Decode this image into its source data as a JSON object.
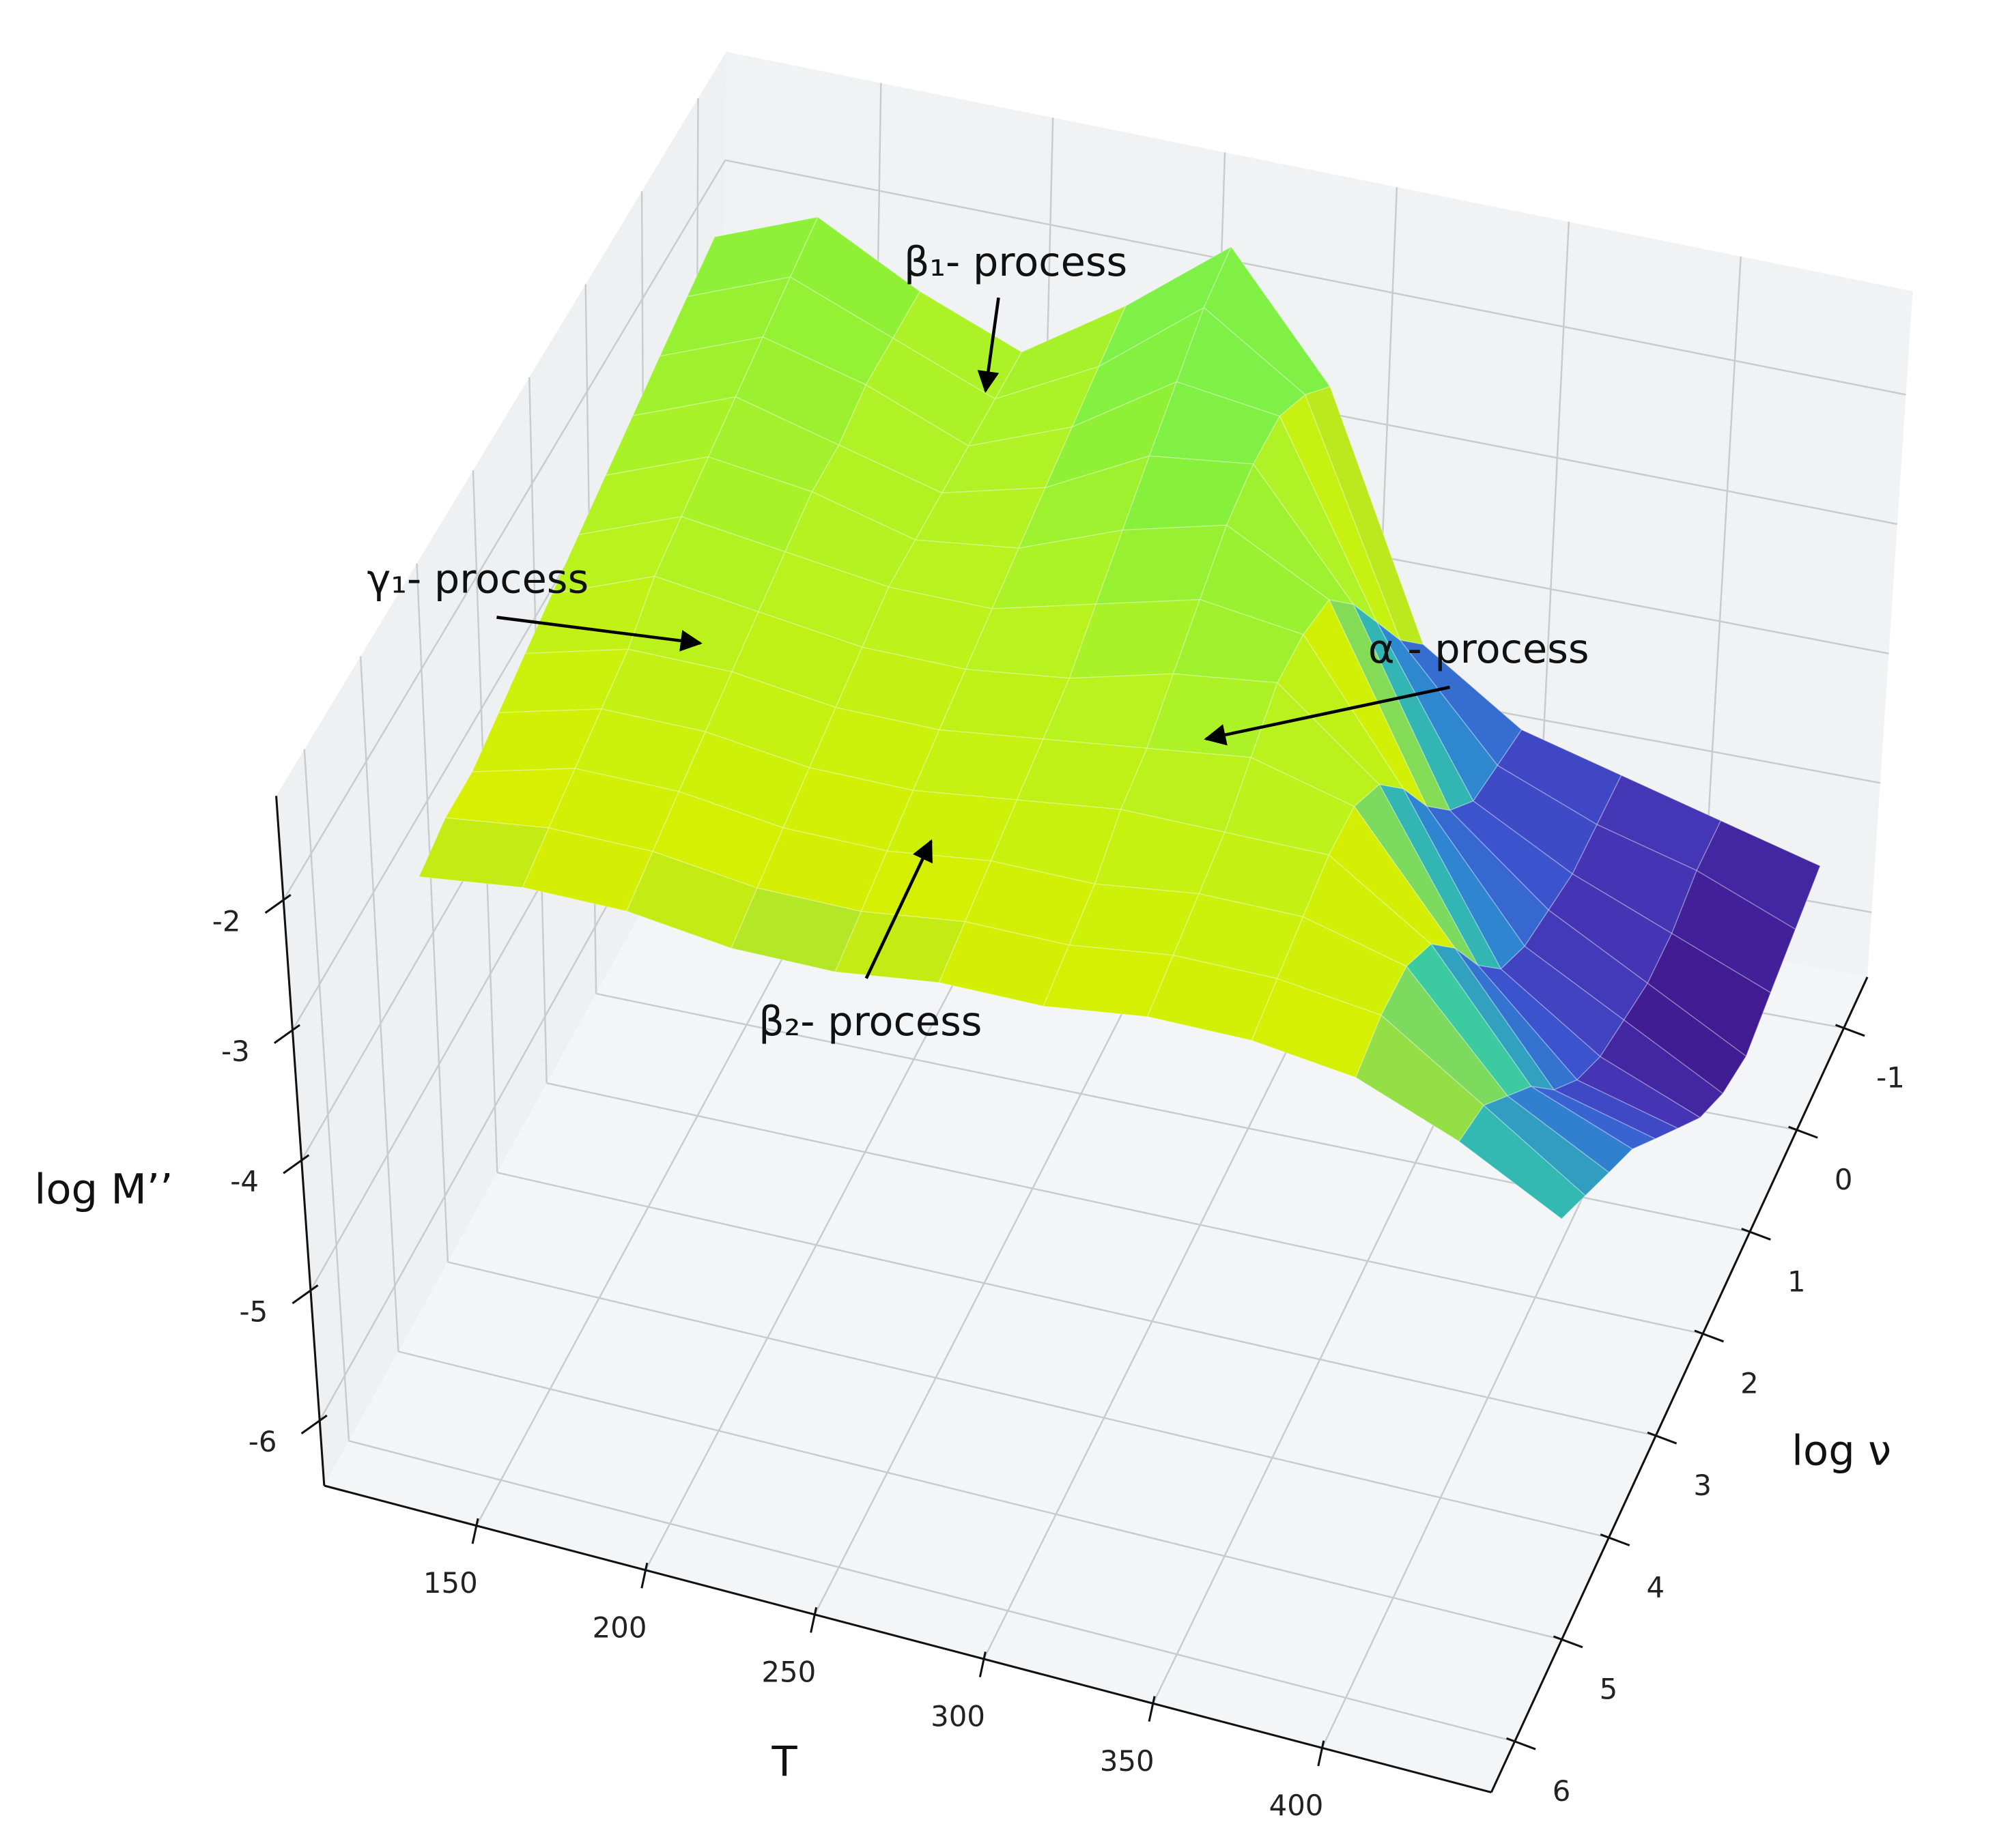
{
  "chart_data": {
    "type": "surface",
    "x_label": "T",
    "y_label": "log ν",
    "z_label": "log M’’",
    "x": [
      110,
      140,
      170,
      200,
      230,
      260,
      290,
      320,
      350,
      380,
      410,
      440
    ],
    "y": [
      -1,
      -0.5,
      0,
      0.5,
      1,
      1.5,
      2,
      2.5,
      3,
      3.5,
      4,
      4.5
    ],
    "z": [
      [
        -2.2,
        -1.9,
        -2.3,
        -2.6,
        -2.1,
        -1.5,
        -2.4,
        -4.2,
        -4.7,
        -4.9,
        -5.1,
        -5.3
      ],
      [
        -2.3,
        -2.0,
        -2.3,
        -2.6,
        -2.2,
        -1.6,
        -2.1,
        -3.8,
        -4.6,
        -4.9,
        -5.1,
        -5.4
      ],
      [
        -2.4,
        -2.1,
        -2.3,
        -2.6,
        -2.3,
        -1.8,
        -1.9,
        -3.3,
        -4.5,
        -4.9,
        -5.2,
        -5.5
      ],
      [
        -2.5,
        -2.2,
        -2.4,
        -2.6,
        -2.4,
        -2.0,
        -1.9,
        -2.8,
        -4.2,
        -4.8,
        -5.2,
        -5.6
      ],
      [
        -2.6,
        -2.3,
        -2.4,
        -2.6,
        -2.5,
        -2.2,
        -2.0,
        -2.4,
        -3.8,
        -4.7,
        -5.1,
        -5.5
      ],
      [
        -2.7,
        -2.4,
        -2.5,
        -2.6,
        -2.6,
        -2.4,
        -2.2,
        -2.3,
        -3.3,
        -4.5,
        -5.0,
        -5.3
      ],
      [
        -2.8,
        -2.5,
        -2.6,
        -2.7,
        -2.7,
        -2.6,
        -2.4,
        -2.3,
        -2.9,
        -4.1,
        -4.8,
        -5.0
      ],
      [
        -2.9,
        -2.7,
        -2.7,
        -2.8,
        -2.8,
        -2.7,
        -2.6,
        -2.5,
        -2.7,
        -3.6,
        -4.5,
        -4.7
      ],
      [
        -3.0,
        -2.8,
        -2.8,
        -2.9,
        -2.9,
        -2.8,
        -2.7,
        -2.7,
        -2.7,
        -3.2,
        -4.1,
        -4.4
      ],
      [
        -3.1,
        -2.9,
        -2.9,
        -3.0,
        -3.0,
        -2.9,
        -2.9,
        -2.8,
        -2.8,
        -3.0,
        -3.8,
        -4.2
      ],
      [
        -3.1,
        -3.0,
        -3.0,
        -3.1,
        -3.1,
        -3.0,
        -3.0,
        -2.9,
        -2.9,
        -3.0,
        -3.5,
        -4.0
      ],
      [
        -3.2,
        -3.1,
        -3.1,
        -3.2,
        -3.2,
        -3.1,
        -3.1,
        -3.0,
        -3.0,
        -3.1,
        -3.4,
        -3.8
      ]
    ],
    "xlim": [
      105,
      450
    ],
    "xticks": [
      150,
      200,
      250,
      300,
      350,
      400
    ],
    "ylim": [
      -1.5,
      6.5
    ],
    "yticks": [
      -1,
      0,
      1,
      2,
      3,
      4,
      5,
      6
    ],
    "zlim": [
      -6.5,
      -1.2
    ],
    "zticks": [
      -6,
      -5,
      -4,
      -3,
      -2
    ],
    "colormap": [
      "#3b0a78",
      "#4630b0",
      "#3c55d0",
      "#2f86d0",
      "#34c8a8",
      "#d8f000",
      "#b4f222",
      "#86f03c",
      "#6cf060"
    ],
    "grid": true,
    "annotations": [
      {
        "text": "β₁- process"
      },
      {
        "text": "γ₁- process"
      },
      {
        "text": "α - process"
      },
      {
        "text": "β₂- process"
      }
    ]
  }
}
